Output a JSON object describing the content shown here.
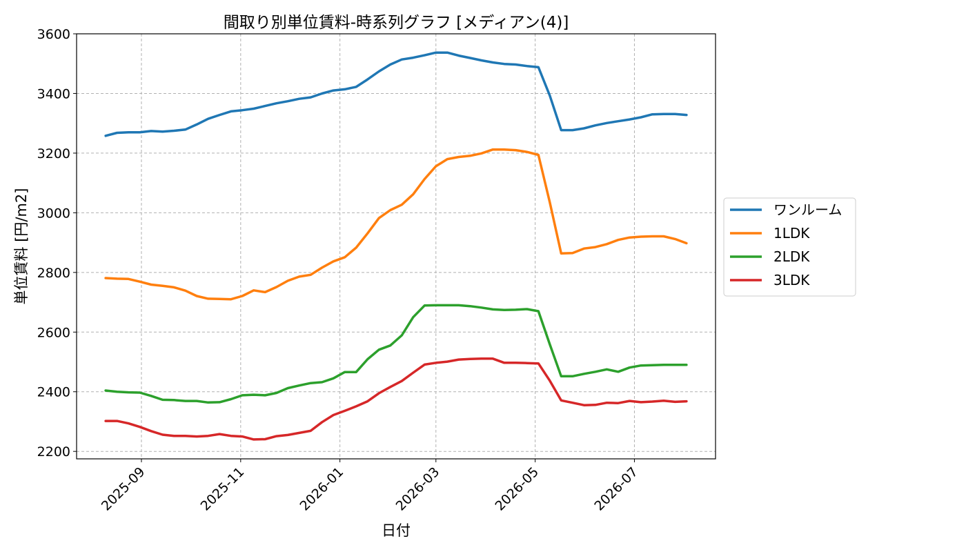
{
  "chart_data": {
    "type": "line",
    "title": "間取り別単位賃料-時系列グラフ [メディアン(4)]",
    "xlabel": "日付",
    "ylabel": "単位賃料 [円/m2]",
    "ylim": [
      2175,
      3600
    ],
    "y_ticks": [
      "2200",
      "2400",
      "2600",
      "2800",
      "3000",
      "3200",
      "3400",
      "3600"
    ],
    "x_ticks": [
      "2025-09",
      "2025-11",
      "2026-01",
      "2026-03",
      "2026-05",
      "2026-07"
    ],
    "grid": true,
    "legend_position": "center-right",
    "x": [
      "2025-08-10",
      "2025-08-17",
      "2025-08-24",
      "2025-08-31",
      "2025-09-07",
      "2025-09-14",
      "2025-09-21",
      "2025-09-28",
      "2025-10-05",
      "2025-10-12",
      "2025-10-19",
      "2025-10-26",
      "2025-11-02",
      "2025-11-09",
      "2025-11-16",
      "2025-11-23",
      "2025-11-30",
      "2025-12-07",
      "2025-12-14",
      "2025-12-21",
      "2025-12-28",
      "2026-01-04",
      "2026-01-11",
      "2026-01-18",
      "2026-01-25",
      "2026-02-01",
      "2026-02-08",
      "2026-02-15",
      "2026-02-22",
      "2026-03-01",
      "2026-03-08",
      "2026-03-15",
      "2026-03-22",
      "2026-03-29",
      "2026-04-05",
      "2026-04-12",
      "2026-04-19",
      "2026-04-26",
      "2026-05-03",
      "2026-05-10",
      "2026-05-17",
      "2026-05-24",
      "2026-05-31",
      "2026-06-07",
      "2026-06-14",
      "2026-06-21",
      "2026-06-28",
      "2026-07-05",
      "2026-07-12",
      "2026-07-19",
      "2026-07-26",
      "2026-08-02"
    ],
    "series": [
      {
        "name": "ワンルーム",
        "color": "#1f77b4",
        "values": [
          3258,
          3268,
          3270,
          3270,
          3274,
          3272,
          3275,
          3279,
          3296,
          3315,
          3328,
          3340,
          3344,
          3349,
          3358,
          3367,
          3374,
          3382,
          3387,
          3400,
          3410,
          3414,
          3422,
          3447,
          3474,
          3497,
          3514,
          3520,
          3528,
          3537,
          3537,
          3527,
          3519,
          3511,
          3504,
          3499,
          3497,
          3492,
          3488,
          3393,
          3277,
          3277,
          3283,
          3293,
          3301,
          3307,
          3313,
          3320,
          3330,
          3331,
          3331,
          3328
        ]
      },
      {
        "name": "1LDK",
        "color": "#ff7f0e",
        "values": [
          2781,
          2779,
          2778,
          2769,
          2759,
          2755,
          2750,
          2739,
          2721,
          2712,
          2711,
          2710,
          2721,
          2740,
          2734,
          2751,
          2772,
          2786,
          2792,
          2816,
          2837,
          2851,
          2883,
          2931,
          2982,
          3009,
          3027,
          3062,
          3113,
          3156,
          3180,
          3187,
          3191,
          3199,
          3212,
          3212,
          3210,
          3204,
          3194,
          3035,
          2864,
          2865,
          2880,
          2885,
          2895,
          2909,
          2917,
          2920,
          2921,
          2921,
          2912,
          2898
        ]
      },
      {
        "name": "2LDK",
        "color": "#2ca02c",
        "values": [
          2404,
          2400,
          2398,
          2397,
          2386,
          2373,
          2372,
          2369,
          2369,
          2364,
          2365,
          2375,
          2388,
          2390,
          2388,
          2396,
          2412,
          2421,
          2429,
          2432,
          2445,
          2466,
          2466,
          2509,
          2541,
          2555,
          2589,
          2650,
          2689,
          2690,
          2690,
          2690,
          2687,
          2682,
          2676,
          2674,
          2675,
          2677,
          2670,
          2559,
          2452,
          2452,
          2460,
          2467,
          2475,
          2467,
          2481,
          2488,
          2489,
          2490,
          2490,
          2490
        ]
      },
      {
        "name": "3LDK",
        "color": "#d62728",
        "values": [
          2302,
          2302,
          2294,
          2282,
          2268,
          2256,
          2252,
          2252,
          2250,
          2252,
          2258,
          2252,
          2250,
          2240,
          2241,
          2251,
          2255,
          2262,
          2269,
          2298,
          2322,
          2336,
          2351,
          2368,
          2395,
          2416,
          2436,
          2464,
          2491,
          2497,
          2501,
          2508,
          2510,
          2511,
          2511,
          2497,
          2497,
          2496,
          2495,
          2437,
          2371,
          2363,
          2355,
          2356,
          2363,
          2362,
          2369,
          2365,
          2367,
          2370,
          2366,
          2368
        ]
      }
    ]
  }
}
